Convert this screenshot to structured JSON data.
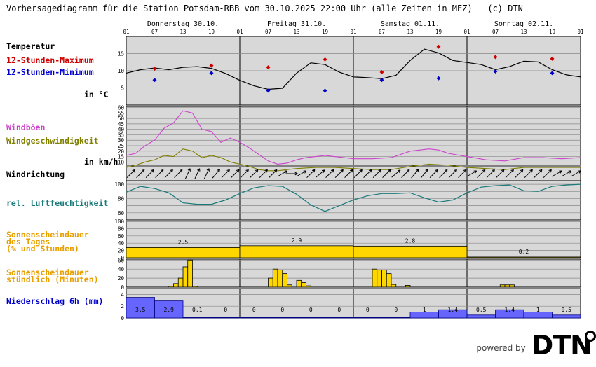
{
  "title": "Vorhersagediagramm für die Station Potsdam-RBB vom 30.10.2025 22:00 Uhr (alle Zeiten in MEZ)   (c) DTN",
  "days": [
    "Donnerstag 30.10.",
    "Freitag 31.10.",
    "Samstag 01.11.",
    "Sonntag 02.11."
  ],
  "hour_ticks": [
    "01",
    "07",
    "13",
    "19",
    "01",
    "07",
    "13",
    "19",
    "01",
    "07",
    "13",
    "19",
    "01",
    "07",
    "13",
    "19",
    "01"
  ],
  "labels": {
    "temperatur": "Temperatur",
    "tmax": "12-Stunden-Maximum",
    "tmin": "12-Stunden-Minimum",
    "temp_unit": "in °C",
    "windboeen": "Windböen",
    "windgeschw": "Windgeschwindigkeit",
    "wind_unit": "in km/h",
    "windrichtung": "Windrichtung",
    "feuchte": "rel. Luftfeuchtigkeit",
    "sonne_tag_1": "Sonnenscheindauer",
    "sonne_tag_2": "des Tages",
    "sonne_tag_3": "(% und Stunden)",
    "sonne_std_1": "Sonnenscheindauer",
    "sonne_std_2": "stündlich (Minuten)",
    "niederschlag": "Niederschlag 6h (mm)"
  },
  "colors": {
    "panel_bg": "#d8d8d8",
    "temperature": "#000000",
    "tmax": "#cc0000",
    "tmin": "#0000cc",
    "gusts": "#cc44cc",
    "wind": "#808000",
    "humidity": "#1a7a7a",
    "sunshine": "#ffd700",
    "sun_label": "#e8a000",
    "precip": "#6666ff",
    "precip_label": "#0000cc"
  },
  "logo": {
    "powered_by": "powered by",
    "brand": "DTN"
  },
  "chart_data": [
    {
      "name": "temperature",
      "type": "line",
      "x_unit": "hours since 30.10. 01:00",
      "ylim": [
        0,
        20
      ],
      "yticks": [
        5,
        10,
        15
      ],
      "x": [
        0,
        3,
        6,
        9,
        12,
        15,
        18,
        21,
        24,
        27,
        30,
        33,
        36,
        39,
        42,
        45,
        48,
        51,
        54,
        57,
        60,
        63,
        66,
        69,
        72,
        75,
        78,
        81,
        84,
        87,
        90,
        93,
        96
      ],
      "y": [
        9.3,
        10.3,
        10.8,
        10.3,
        11.0,
        11.2,
        10.7,
        9.2,
        7.2,
        5.6,
        4.6,
        4.9,
        9.3,
        12.3,
        11.8,
        9.6,
        8.2,
        8.0,
        7.7,
        8.7,
        13.0,
        16.3,
        15.2,
        13.0,
        12.4,
        11.8,
        10.3,
        11.2,
        12.8,
        12.6,
        10.3,
        8.8,
        8.2
      ],
      "tmax": {
        "x": [
          6,
          18,
          30,
          42,
          54,
          66,
          78,
          90
        ],
        "y": [
          10.6,
          11.5,
          11.0,
          13.3,
          9.6,
          17.0,
          14.0,
          13.5
        ]
      },
      "tmin": {
        "x": [
          6,
          18,
          30,
          42,
          54,
          66,
          78,
          90
        ],
        "y": [
          7.3,
          9.3,
          4.2,
          4.2,
          7.3,
          7.8,
          9.8,
          9.3
        ]
      }
    },
    {
      "name": "wind",
      "type": "line",
      "x_unit": "hours since 30.10. 01:00",
      "ylim": [
        0,
        60
      ],
      "yticks": [
        10,
        15,
        20,
        25,
        30,
        35,
        40,
        45,
        50,
        55,
        60
      ],
      "series": [
        {
          "name": "Windböen",
          "x": [
            0,
            2,
            4,
            6,
            8,
            10,
            12,
            14,
            16,
            18,
            20,
            22,
            24,
            26,
            28,
            30,
            32,
            34,
            36,
            38,
            40,
            42,
            44,
            46,
            48,
            52,
            56,
            60,
            64,
            66,
            68,
            72,
            76,
            80,
            84,
            88,
            92,
            96
          ],
          "y": [
            16,
            18,
            25,
            30,
            41,
            46,
            57,
            55,
            40,
            38,
            28,
            32,
            28,
            23,
            17,
            11,
            8,
            9,
            12,
            14,
            15,
            16,
            15,
            14,
            13,
            13,
            14,
            20,
            22,
            21,
            18,
            15,
            12,
            11,
            14,
            14,
            13,
            14
          ]
        },
        {
          "name": "Windgeschwindigkeit",
          "x": [
            0,
            2,
            4,
            6,
            8,
            10,
            12,
            14,
            16,
            18,
            20,
            22,
            24,
            26,
            28,
            30,
            32,
            34,
            36,
            40,
            44,
            48,
            52,
            56,
            60,
            64,
            68,
            72,
            76,
            80,
            84,
            88,
            92,
            96
          ],
          "y": [
            5,
            7,
            10,
            12,
            16,
            15,
            22,
            20,
            14,
            16,
            14,
            10,
            8,
            6,
            3,
            2,
            2,
            3,
            4,
            5,
            5,
            4,
            3,
            3,
            6,
            8,
            7,
            5,
            4,
            3,
            5,
            5,
            5,
            5
          ]
        }
      ]
    },
    {
      "name": "wind_direction",
      "type": "arrows",
      "x_unit": "hours since 30.10. 01:00",
      "x": [
        1,
        3,
        5,
        7,
        9,
        11,
        13,
        15,
        17,
        19,
        21,
        23,
        25,
        27,
        29,
        31,
        33,
        35,
        37,
        39,
        41,
        43,
        45,
        47,
        49,
        51,
        53,
        55,
        57,
        59,
        61,
        63,
        65,
        67,
        69,
        71,
        73,
        75,
        77,
        79,
        81,
        83,
        85,
        87,
        89,
        91,
        93,
        95
      ],
      "heading_deg": [
        45,
        45,
        45,
        45,
        45,
        45,
        25,
        25,
        25,
        40,
        45,
        45,
        45,
        45,
        45,
        45,
        60,
        90,
        60,
        45,
        50,
        45,
        45,
        45,
        45,
        45,
        45,
        45,
        50,
        45,
        40,
        40,
        45,
        45,
        45,
        45,
        60,
        45,
        45,
        45,
        45,
        45,
        45,
        45,
        45,
        60,
        60,
        60
      ]
    },
    {
      "name": "humidity",
      "type": "line",
      "x_unit": "hours since 30.10. 01:00",
      "ylim": [
        50,
        100
      ],
      "yticks": [
        60,
        80,
        100
      ],
      "x": [
        0,
        3,
        6,
        9,
        12,
        15,
        18,
        21,
        24,
        27,
        30,
        33,
        36,
        39,
        42,
        45,
        48,
        51,
        54,
        57,
        60,
        63,
        66,
        69,
        72,
        75,
        78,
        81,
        84,
        87,
        90,
        93,
        96
      ],
      "y": [
        89,
        97,
        94,
        88,
        74,
        72,
        72,
        78,
        87,
        95,
        98,
        97,
        86,
        71,
        62,
        70,
        78,
        84,
        87,
        87,
        88,
        81,
        75,
        78,
        88,
        96,
        98,
        99,
        91,
        90,
        97,
        99,
        100
      ]
    },
    {
      "name": "sunshine_daily",
      "type": "bar",
      "ylim": [
        0,
        100
      ],
      "yticks": [
        0,
        20,
        40,
        60,
        80,
        100
      ],
      "categories": [
        "Donnerstag 30.10.",
        "Freitag 31.10.",
        "Samstag 01.11.",
        "Sonntag 02.11."
      ],
      "values": [
        28,
        33,
        32,
        2
      ],
      "labels": [
        "2.5",
        "2.9",
        "2.8",
        "0.2"
      ]
    },
    {
      "name": "sunshine_hourly",
      "type": "bar",
      "ylim": [
        0,
        60
      ],
      "yticks": [
        0,
        20,
        40,
        60
      ],
      "x_unit": "hour index since 30.10. 01:00",
      "x": [
        9,
        10,
        11,
        12,
        13,
        14,
        30,
        31,
        32,
        33,
        34,
        36,
        37,
        38,
        52,
        53,
        54,
        55,
        56,
        59,
        79,
        80,
        81
      ],
      "values": [
        2,
        8,
        20,
        45,
        60,
        2,
        20,
        40,
        38,
        30,
        5,
        15,
        10,
        3,
        40,
        38,
        38,
        30,
        6,
        4,
        5,
        5,
        5
      ]
    },
    {
      "name": "precipitation",
      "type": "bar",
      "ylim": [
        0,
        5
      ],
      "yticks": [
        0,
        2,
        4
      ],
      "x_unit": "6h block index",
      "values": [
        3.5,
        2.9,
        0.1,
        0,
        0,
        0,
        0,
        0,
        0,
        0,
        1,
        1.4,
        0.5,
        1.4,
        1,
        0.5
      ],
      "labels": [
        "3.5",
        "2.9",
        "0.1",
        "0",
        "0",
        "0",
        "0",
        "0",
        "0",
        "0",
        "1",
        "1.4",
        "0.5",
        "1.4",
        "1",
        "0.5"
      ]
    }
  ]
}
